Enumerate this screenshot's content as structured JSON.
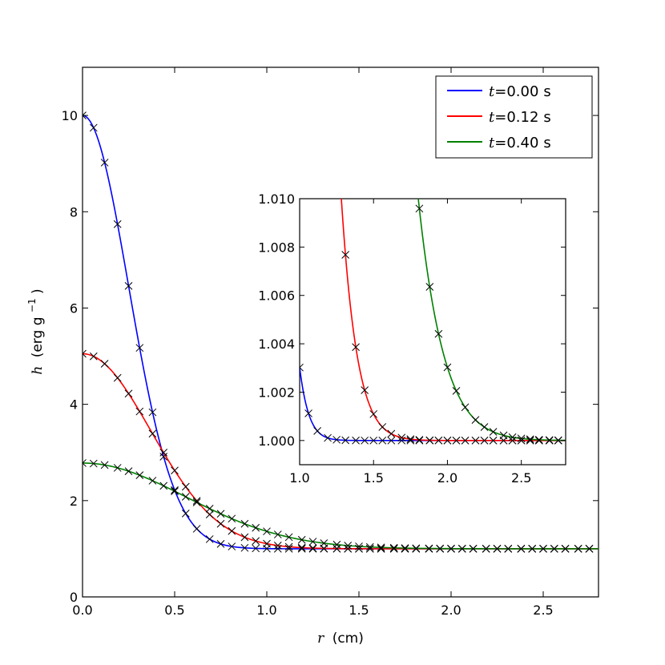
{
  "chart_data": [
    {
      "type": "line",
      "name": "main",
      "xlabel_var": "r",
      "xlabel_unit": "(cm)",
      "ylabel_var": "h",
      "ylabel_unit": "(erg g",
      "ylabel_exp": "−1",
      "ylabel_close": ")",
      "xlim": [
        0,
        2.8
      ],
      "ylim": [
        0,
        11
      ],
      "xticks": [
        0.0,
        0.5,
        1.0,
        1.5,
        2.0,
        2.5
      ],
      "xtick_labels": [
        "0.0",
        "0.5",
        "1.0",
        "1.5",
        "2.0",
        "2.5"
      ],
      "yticks": [
        0,
        2,
        4,
        6,
        8,
        10
      ],
      "ytick_labels": [
        "0",
        "2",
        "4",
        "6",
        "8",
        "10"
      ],
      "legend_position": "top-right",
      "series": [
        {
          "name": "t=0.00 s",
          "var": "t",
          "eq_label": "=0.00",
          "unit": "s",
          "color": "#0000ff",
          "amplitude": 9.0,
          "sigma": 0.25
        },
        {
          "name": "t=0.12 s",
          "var": "t",
          "eq_label": "=0.12",
          "unit": "s",
          "color": "#ff0000",
          "amplitude": 4.05,
          "sigma": 0.37
        },
        {
          "name": "t=0.40 s",
          "var": "t",
          "eq_label": "=0.40",
          "unit": "s",
          "color": "#008000",
          "amplitude": 1.78,
          "sigma": 0.56
        }
      ],
      "markers": {
        "symbol": "x",
        "color": "#000000",
        "x": [
          0.0,
          0.06,
          0.12,
          0.19,
          0.25,
          0.31,
          0.38,
          0.44,
          0.5,
          0.56,
          0.62,
          0.69,
          0.75,
          0.81,
          0.88,
          0.94,
          1.0,
          1.06,
          1.12,
          1.19,
          1.25,
          1.31,
          1.38,
          1.44,
          1.5,
          1.56,
          1.62,
          1.69,
          1.75,
          1.81,
          1.88,
          1.94,
          2.0,
          2.06,
          2.12,
          2.19,
          2.25,
          2.31,
          2.38,
          2.44,
          2.5,
          2.56,
          2.62,
          2.69,
          2.75
        ]
      }
    },
    {
      "type": "line",
      "name": "inset",
      "xlim": [
        1.0,
        2.8
      ],
      "ylim": [
        0.999,
        1.01
      ],
      "xticks": [
        1.0,
        1.5,
        2.0,
        2.5
      ],
      "xtick_labels": [
        "1.0",
        "1.5",
        "2.0",
        "2.5"
      ],
      "yticks": [
        1.0,
        1.002,
        1.004,
        1.006,
        1.008,
        1.01
      ],
      "ytick_labels": [
        "1.000",
        "1.002",
        "1.004",
        "1.006",
        "1.008",
        "1.010"
      ],
      "series": [
        {
          "name": "t=0.00 s",
          "color": "#0000ff"
        },
        {
          "name": "t=0.12 s",
          "color": "#ff0000"
        },
        {
          "name": "t=0.40 s",
          "color": "#008000"
        }
      ],
      "markers": {
        "symbol": "x",
        "x": [
          1.0,
          1.06,
          1.12,
          1.19,
          1.25,
          1.31,
          1.38,
          1.44,
          1.5,
          1.56,
          1.62,
          1.69,
          1.75,
          1.81,
          1.88,
          1.94,
          2.0,
          2.06,
          2.12,
          2.19,
          2.25,
          2.31,
          2.38,
          2.44,
          2.5,
          2.56,
          2.62,
          2.69,
          2.75
        ]
      }
    }
  ]
}
